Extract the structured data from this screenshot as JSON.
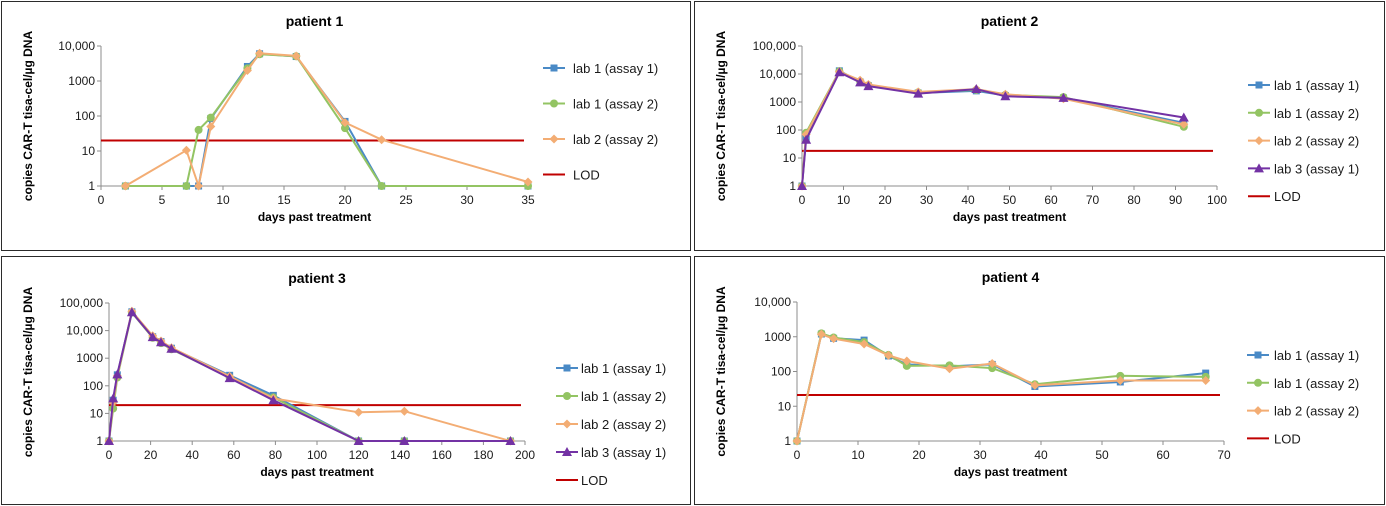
{
  "colors": {
    "lab1_assay1": "#4a8ac6",
    "lab1_assay2": "#93c463",
    "lab2_assay2": "#f3ad74",
    "lab3_assay1": "#7332a4",
    "lod": "#c00000",
    "border": "#2b2b2b"
  },
  "chart_data": [
    {
      "type": "line",
      "title": "patient 1",
      "xlabel": "days past treatment",
      "ylabel": "copies CAR-T tisa-cel/µg DNA",
      "y_scale": "log",
      "xlim": [
        0,
        35
      ],
      "x_ticks": [
        "0",
        "5",
        "10",
        "15",
        "20",
        "25",
        "30",
        "35"
      ],
      "ylim": [
        1,
        10000
      ],
      "y_ticks": [
        "1",
        "10",
        "100",
        "1000",
        "10,000"
      ],
      "legend_position": "right",
      "lod_label": "LOD",
      "lod_value": 20,
      "series": [
        {
          "name": "lab 1 (assay 1)",
          "marker": "square",
          "color": "#4a8ac6",
          "x": [
            2,
            7,
            8,
            9,
            12,
            13,
            16,
            20,
            23,
            35
          ],
          "y": [
            1,
            1,
            1,
            85,
            2600,
            6000,
            5000,
            70,
            1,
            1
          ]
        },
        {
          "name": "lab 1 (assay 2)",
          "marker": "circle",
          "color": "#93c463",
          "x": [
            2,
            7,
            8,
            9,
            12,
            13,
            16,
            20,
            23,
            35
          ],
          "y": [
            1,
            1,
            40,
            90,
            2300,
            5800,
            5100,
            45,
            1,
            1
          ]
        },
        {
          "name": "lab 2 (assay 2)",
          "marker": "diamond",
          "color": "#f3ad74",
          "x": [
            2,
            7,
            8,
            9,
            12,
            13,
            16,
            20,
            23,
            35
          ],
          "y": [
            1,
            10.5,
            1,
            50,
            2000,
            6200,
            5200,
            65,
            21,
            1.3
          ]
        }
      ]
    },
    {
      "type": "line",
      "title": "patient 2",
      "xlabel": "days past treatment",
      "ylabel": "copies CAR-T tisa-cel/µg DNA",
      "y_scale": "log",
      "xlim": [
        0,
        100
      ],
      "x_ticks": [
        "0",
        "10",
        "20",
        "30",
        "40",
        "50",
        "60",
        "70",
        "80",
        "90",
        "100"
      ],
      "ylim": [
        1,
        100000
      ],
      "y_ticks": [
        "1",
        "10",
        "100",
        "1000",
        "10,000",
        "100,000"
      ],
      "legend_position": "right",
      "lod_label": "LOD",
      "lod_value": 18,
      "series": [
        {
          "name": "lab 1 (assay 1)",
          "marker": "square",
          "color": "#4a8ac6",
          "x": [
            0,
            1,
            9,
            14,
            16,
            28,
            42,
            49,
            63,
            92
          ],
          "y": [
            1,
            55,
            13000,
            5200,
            3800,
            2100,
            2500,
            1700,
            1400,
            180
          ]
        },
        {
          "name": "lab 1 (assay 2)",
          "marker": "circle",
          "color": "#93c463",
          "x": [
            0,
            1,
            9,
            14,
            16,
            28,
            42,
            49,
            63,
            92
          ],
          "y": [
            1,
            80,
            12500,
            5500,
            4000,
            2200,
            2700,
            1800,
            1500,
            130
          ]
        },
        {
          "name": "lab 2 (assay 2)",
          "marker": "diamond",
          "color": "#f3ad74",
          "x": [
            0,
            1,
            9,
            14,
            16,
            28,
            42,
            49,
            63,
            92
          ],
          "y": [
            1,
            70,
            12000,
            6000,
            4200,
            2300,
            2900,
            1900,
            1300,
            160
          ]
        },
        {
          "name": "lab 3 (assay 1)",
          "marker": "triangle",
          "color": "#7332a4",
          "x": [
            0,
            1,
            9,
            14,
            16,
            28,
            42,
            49,
            63,
            92
          ],
          "y": [
            1,
            45,
            11500,
            5000,
            3700,
            2000,
            2900,
            1600,
            1400,
            280
          ]
        }
      ]
    },
    {
      "type": "line",
      "title": "patient 3",
      "xlabel": "days past treatment",
      "ylabel": "copies CAR-T tisa-cel/µg DNA",
      "y_scale": "log",
      "xlim": [
        0,
        200
      ],
      "x_ticks": [
        "0",
        "20",
        "40",
        "60",
        "80",
        "100",
        "120",
        "140",
        "160",
        "180",
        "200"
      ],
      "ylim": [
        1,
        100000
      ],
      "y_ticks": [
        "1",
        "10",
        "100",
        "1000",
        "10,000",
        "100,000"
      ],
      "legend_position": "right",
      "lod_label": "LOD",
      "lod_value": 20,
      "series": [
        {
          "name": "lab 1 (assay 1)",
          "marker": "square",
          "color": "#4a8ac6",
          "x": [
            0,
            2,
            4,
            11,
            21,
            25,
            30,
            58,
            79,
            120,
            142,
            193
          ],
          "y": [
            1,
            30,
            250,
            48000,
            6000,
            4000,
            2300,
            240,
            45,
            1,
            1,
            1
          ]
        },
        {
          "name": "lab 1 (assay 2)",
          "marker": "circle",
          "color": "#93c463",
          "x": [
            0,
            2,
            4,
            11,
            21,
            25,
            30,
            58,
            79,
            120,
            142,
            193
          ],
          "y": [
            1,
            15,
            200,
            45000,
            5500,
            3500,
            2100,
            200,
            38,
            1,
            1,
            1
          ]
        },
        {
          "name": "lab 2 (assay 2)",
          "marker": "diamond",
          "color": "#f3ad74",
          "x": [
            0,
            2,
            4,
            11,
            21,
            25,
            30,
            58,
            79,
            120,
            142,
            193
          ],
          "y": [
            1,
            25,
            230,
            50000,
            6500,
            4200,
            2400,
            220,
            35,
            11,
            12,
            1
          ]
        },
        {
          "name": "lab 3 (assay 1)",
          "marker": "triangle",
          "color": "#7332a4",
          "x": [
            0,
            2,
            4,
            11,
            21,
            25,
            30,
            58,
            79,
            120,
            142,
            193
          ],
          "y": [
            1,
            35,
            260,
            46000,
            5800,
            3800,
            2200,
            190,
            30,
            1,
            1,
            1
          ]
        }
      ]
    },
    {
      "type": "line",
      "title": "patient 4",
      "xlabel": "days past treatment",
      "ylabel": "copies CAR-T tisa-cel/µg DNA",
      "y_scale": "log",
      "xlim": [
        0,
        70
      ],
      "x_ticks": [
        "0",
        "10",
        "20",
        "30",
        "40",
        "50",
        "60",
        "70"
      ],
      "ylim": [
        1,
        10000
      ],
      "y_ticks": [
        "1",
        "10",
        "100",
        "1000",
        "10,000"
      ],
      "legend_position": "right",
      "lod_label": "LOD",
      "lod_value": 21,
      "series": [
        {
          "name": "lab 1 (assay 1)",
          "marker": "square",
          "color": "#4a8ac6",
          "x": [
            0,
            4,
            6,
            11,
            15,
            18,
            25,
            32,
            39,
            53,
            67
          ],
          "y": [
            1,
            1200,
            900,
            800,
            280,
            160,
            140,
            160,
            37,
            50,
            90
          ]
        },
        {
          "name": "lab 1 (assay 2)",
          "marker": "circle",
          "color": "#93c463",
          "x": [
            0,
            4,
            6,
            11,
            15,
            18,
            25,
            32,
            39,
            53,
            67
          ],
          "y": [
            1,
            1250,
            950,
            700,
            300,
            145,
            150,
            125,
            43,
            75,
            70
          ]
        },
        {
          "name": "lab 2 (assay 2)",
          "marker": "diamond",
          "color": "#f3ad74",
          "x": [
            0,
            4,
            6,
            11,
            15,
            18,
            25,
            32,
            39,
            53,
            67
          ],
          "y": [
            1,
            1180,
            880,
            620,
            290,
            200,
            120,
            170,
            40,
            55,
            55
          ]
        }
      ]
    }
  ]
}
